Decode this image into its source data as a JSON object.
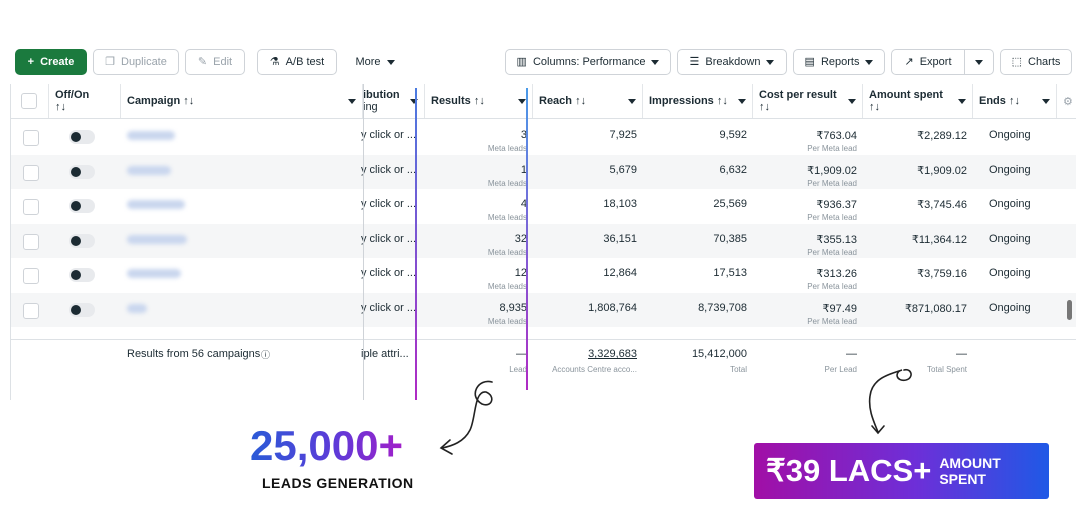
{
  "toolbar": {
    "create": "Create",
    "duplicate": "Duplicate",
    "edit": "Edit",
    "ab_test": "A/B test",
    "more": "More",
    "columns": "Columns: Performance",
    "breakdown": "Breakdown",
    "reports": "Reports",
    "export": "Export",
    "charts": "Charts"
  },
  "headers": {
    "off_on": "Off/On",
    "campaign": "Campaign",
    "attribution_top": "ibution",
    "attribution_bottom": "ing",
    "results": "Results",
    "reach": "Reach",
    "impressions": "Impressions",
    "cost_per_result": "Cost per result",
    "amount_spent": "Amount spent",
    "ends": "Ends",
    "sort_glyph": "↑↓"
  },
  "rows": [
    {
      "attribution": "y click or ...",
      "results": "3",
      "results_sub": "Meta leads",
      "reach": "7,925",
      "impressions": "9,592",
      "cpr": "₹763.04",
      "cpr_sub": "Per Meta lead",
      "spent": "₹2,289.12",
      "ends": "Ongoing"
    },
    {
      "attribution": "y click or ...",
      "results": "1",
      "results_sub": "Meta leads",
      "reach": "5,679",
      "impressions": "6,632",
      "cpr": "₹1,909.02",
      "cpr_sub": "Per Meta lead",
      "spent": "₹1,909.02",
      "ends": "Ongoing"
    },
    {
      "attribution": "y click or ...",
      "results": "4",
      "results_sub": "Meta leads",
      "reach": "18,103",
      "impressions": "25,569",
      "cpr": "₹936.37",
      "cpr_sub": "Per Meta lead",
      "spent": "₹3,745.46",
      "ends": "Ongoing"
    },
    {
      "attribution": "y click or ...",
      "results": "32",
      "results_sub": "Meta leads",
      "reach": "36,151",
      "impressions": "70,385",
      "cpr": "₹355.13",
      "cpr_sub": "Per Meta lead",
      "spent": "₹11,364.12",
      "ends": "Ongoing"
    },
    {
      "attribution": "y click or ...",
      "results": "12",
      "results_sub": "Meta leads",
      "reach": "12,864",
      "impressions": "17,513",
      "cpr": "₹313.26",
      "cpr_sub": "Per Meta lead",
      "spent": "₹3,759.16",
      "ends": "Ongoing"
    },
    {
      "attribution": "y click or ...",
      "results": "8,935",
      "results_sub": "Meta leads",
      "reach": "1,808,764",
      "impressions": "8,739,708",
      "cpr": "₹97.49",
      "cpr_sub": "Per Meta lead",
      "spent": "₹871,080.17",
      "ends": "Ongoing"
    }
  ],
  "footer": {
    "campaigns": "Results from 56 campaigns",
    "attribution": "iple attri...",
    "results": "—",
    "results_sub": "Lead",
    "reach": "3,329,683",
    "reach_sub": "Accounts Centre acco...",
    "impressions": "15,412,000",
    "impressions_sub": "Total",
    "cpr": "—",
    "cpr_sub": "Per Lead",
    "spent": "—",
    "spent_sub": "Total Spent"
  },
  "promo": {
    "leads_value": "25,000+",
    "leads_caption": "LEADS GENERATION",
    "amount_value": "₹39 LACS+",
    "amount_caption_1": "AMOUNT",
    "amount_caption_2": "SPENT"
  },
  "colors": {
    "create_green": "#1b7a3e",
    "accent_blue": "#2a5bd7",
    "accent_purple": "#a21fc9"
  }
}
